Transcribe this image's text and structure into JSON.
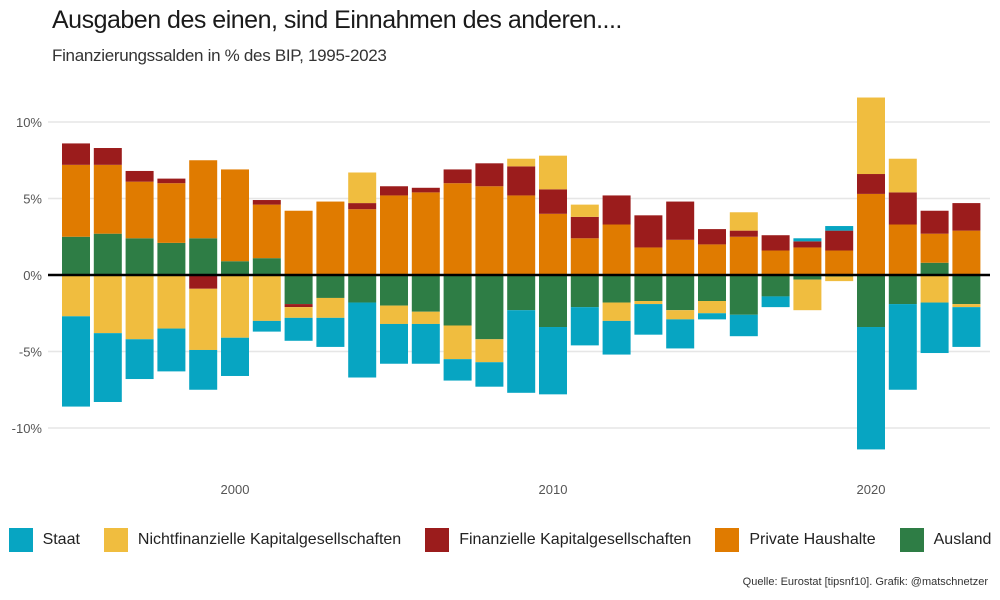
{
  "title": "Ausgaben des einen, sind Einnahmen des anderen....",
  "subtitle": "Finanzierungssalden in % des BIP, 1995-2023",
  "source": "Quelle: Eurostat [tipsnf10]. Grafik: @matschnetzer",
  "chart_data": {
    "type": "bar",
    "stacked": true,
    "x": [
      1995,
      1996,
      1997,
      1998,
      1999,
      2000,
      2001,
      2002,
      2003,
      2004,
      2005,
      2006,
      2007,
      2008,
      2009,
      2010,
      2011,
      2012,
      2013,
      2014,
      2015,
      2016,
      2017,
      2018,
      2019,
      2020,
      2021,
      2022,
      2023
    ],
    "ylim": [
      -13,
      12
    ],
    "y_ticks": [
      10,
      5,
      0,
      -5,
      -10
    ],
    "y_tick_labels": [
      "10%",
      "5%",
      "0%",
      "-5%",
      "-10%"
    ],
    "x_ticks": [
      2000,
      2010,
      2020
    ],
    "x_tick_labels": [
      "2000",
      "2010",
      "2020"
    ],
    "grid": true,
    "legend_position": "bottom",
    "series": [
      {
        "name": "Ausland",
        "color": "#2e7d45",
        "values": [
          2.5,
          2.7,
          2.4,
          2.1,
          2.4,
          0.9,
          1.1,
          -1.9,
          -1.5,
          -1.8,
          -2.0,
          -2.4,
          -3.3,
          -4.2,
          -2.3,
          -3.4,
          -2.1,
          -1.8,
          -1.7,
          -2.3,
          -1.7,
          -2.6,
          -1.4,
          -0.3,
          -0.1,
          -3.4,
          -1.9,
          0.8,
          -1.9
        ]
      },
      {
        "name": "Private Haushalte",
        "color": "#e07b00",
        "values": [
          4.7,
          4.5,
          3.7,
          3.9,
          5.1,
          6.0,
          3.5,
          4.2,
          4.8,
          4.3,
          5.2,
          5.4,
          6.0,
          5.8,
          5.2,
          4.0,
          2.4,
          3.3,
          1.8,
          2.3,
          2.0,
          2.5,
          1.6,
          1.8,
          1.6,
          5.3,
          3.3,
          1.9,
          2.9
        ]
      },
      {
        "name": "Finanzielle Kapitalgesellschaften",
        "color": "#9b1c1c",
        "values": [
          1.4,
          1.1,
          0.7,
          0.3,
          -0.9,
          0.0,
          0.3,
          -0.2,
          0.0,
          0.4,
          0.6,
          0.3,
          0.9,
          1.5,
          1.9,
          1.6,
          1.4,
          1.9,
          2.1,
          2.5,
          1.0,
          0.4,
          1.0,
          0.4,
          1.3,
          1.3,
          2.1,
          1.5,
          1.8
        ]
      },
      {
        "name": "Nichtfinanzielle Kapitalgesellschaften",
        "color": "#f0bd3f",
        "values": [
          -2.7,
          -3.8,
          -4.2,
          -3.5,
          -4.0,
          -4.1,
          -3.0,
          -0.7,
          -1.3,
          2.0,
          -1.2,
          -0.8,
          -2.2,
          -1.5,
          0.5,
          2.2,
          0.8,
          -1.2,
          -0.2,
          -0.6,
          -0.8,
          1.2,
          0.0,
          -2.0,
          -0.3,
          5.0,
          2.2,
          -1.8,
          -0.2
        ]
      },
      {
        "name": "Staat",
        "color": "#07a5c2",
        "values": [
          -5.9,
          -4.5,
          -2.6,
          -2.8,
          -2.6,
          -2.5,
          -0.7,
          -1.5,
          -1.9,
          -4.9,
          -2.6,
          -2.6,
          -1.4,
          -1.6,
          -5.4,
          -4.4,
          -2.5,
          -2.2,
          -2.0,
          -1.9,
          -0.4,
          -1.4,
          -0.7,
          0.2,
          0.3,
          -8.0,
          -5.6,
          -3.3,
          -2.6
        ]
      }
    ],
    "legend": [
      {
        "name": "Staat",
        "color": "#07a5c2"
      },
      {
        "name": "Nichtfinanzielle Kapitalgesellschaften",
        "color": "#f0bd3f"
      },
      {
        "name": "Finanzielle Kapitalgesellschaften",
        "color": "#9b1c1c"
      },
      {
        "name": "Private Haushalte",
        "color": "#e07b00"
      },
      {
        "name": "Ausland",
        "color": "#2e7d45"
      }
    ]
  }
}
